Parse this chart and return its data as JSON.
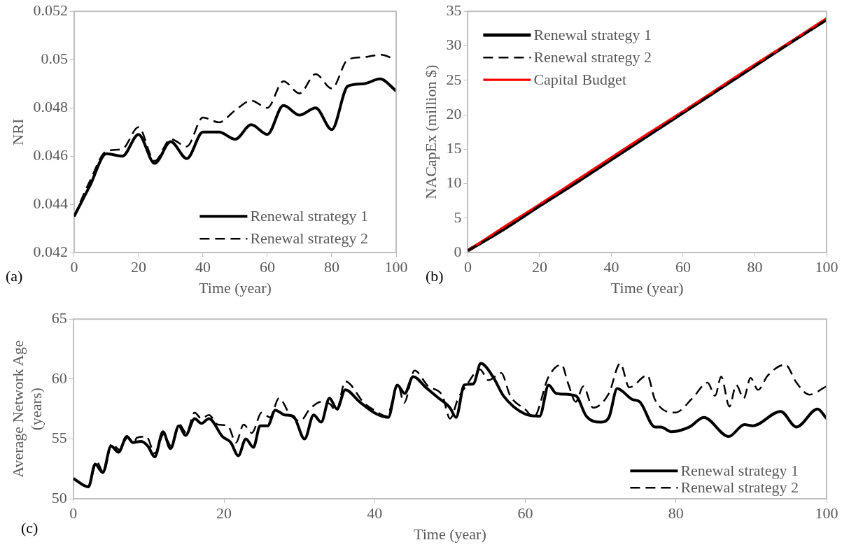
{
  "chart_data": [
    {
      "type": "line",
      "xlabel": "Time (year)",
      "ylabel": "NRI",
      "annotations": [
        "(a)"
      ],
      "xlim": [
        0,
        100
      ],
      "xticks": [
        0,
        20,
        40,
        60,
        80,
        100
      ],
      "ylim": [
        0.042,
        0.052
      ],
      "yticks": [
        0.042,
        0.044,
        0.046,
        0.048,
        0.05,
        0.052
      ],
      "grid": false,
      "legend": "bottom right",
      "marker": "none",
      "x": [
        0,
        5,
        10,
        15,
        20,
        25,
        30,
        35,
        40,
        45,
        50,
        55,
        60,
        65,
        70,
        75,
        80,
        85,
        90,
        95,
        100
      ],
      "series": [
        {
          "name": "Renewal strategy 1",
          "color": "#000000",
          "line_style": "solid",
          "values": [
            0.0435,
            0.0448,
            0.0461,
            0.046,
            0.0469,
            0.0457,
            0.0466,
            0.0459,
            0.047,
            0.047,
            0.0467,
            0.0473,
            0.0469,
            0.0481,
            0.0477,
            0.048,
            0.0471,
            0.0489,
            0.049,
            0.0492,
            0.0487
          ]
        },
        {
          "name": "Renewal strategy 2",
          "color": "#000000",
          "line_style": "dashed",
          "values": [
            0.0435,
            0.045,
            0.0462,
            0.0463,
            0.0472,
            0.0458,
            0.0467,
            0.0464,
            0.0476,
            0.0474,
            0.0479,
            0.0483,
            0.048,
            0.0491,
            0.0486,
            0.0494,
            0.0488,
            0.05,
            0.0501,
            0.0502,
            0.05
          ]
        }
      ]
    },
    {
      "type": "line",
      "xlabel": "Time (year)",
      "ylabel": "NACapEx (million $)",
      "annotations": [
        "(b)"
      ],
      "xlim": [
        0,
        100
      ],
      "xticks": [
        0,
        20,
        40,
        60,
        80,
        100
      ],
      "ylim": [
        0,
        35
      ],
      "yticks": [
        0,
        5,
        10,
        15,
        20,
        25,
        30,
        35
      ],
      "grid": false,
      "legend": "top left",
      "marker": "none",
      "x": [
        0,
        10,
        20,
        30,
        40,
        50,
        60,
        70,
        80,
        90,
        100
      ],
      "series": [
        {
          "name": "Renewal strategy 1",
          "color": "#000000",
          "line_style": "solid",
          "values": [
            0.3,
            3.4,
            6.8,
            10.1,
            13.5,
            16.9,
            20.3,
            23.7,
            27.1,
            30.5,
            33.8
          ]
        },
        {
          "name": "Renewal strategy 2",
          "color": "#000000",
          "line_style": "dashed",
          "values": [
            0.3,
            3.4,
            6.8,
            10.1,
            13.5,
            16.9,
            20.3,
            23.7,
            27.1,
            30.5,
            33.8
          ]
        },
        {
          "name": "Capital Budget",
          "color": "#ff0000",
          "line_style": "solid",
          "values": [
            0.3,
            3.7,
            7.0,
            10.4,
            13.8,
            17.2,
            20.5,
            23.9,
            27.3,
            30.6,
            34.0
          ]
        }
      ]
    },
    {
      "type": "line",
      "xlabel": "Time (year)",
      "ylabel": "Average Network Age (years)",
      "annotations": [
        "(c)"
      ],
      "xlim": [
        0,
        100
      ],
      "xticks": [
        0,
        20,
        40,
        60,
        80,
        100
      ],
      "ylim": [
        50,
        65
      ],
      "yticks": [
        50,
        55,
        60,
        65
      ],
      "grid": false,
      "legend": "bottom right",
      "marker": "none",
      "series": [
        {
          "name": "Renewal strategy 1",
          "color": "#000000",
          "line_style": "solid",
          "x": [
            0,
            2,
            2.9,
            3.9,
            5,
            6,
            7.1,
            7.9,
            9,
            9.9,
            10.8,
            11.9,
            12.9,
            14,
            14.9,
            16.1,
            17,
            18,
            19.8,
            20.9,
            21.9,
            22.9,
            23.9,
            24.8,
            25.8,
            26.8,
            28.1,
            29.2,
            30.7,
            31.9,
            32.9,
            34,
            35,
            36.1,
            38,
            40.2,
            41.8,
            43,
            44,
            45.1,
            46.8,
            48.3,
            50,
            50.8,
            51.9,
            53.1,
            54.1,
            55.7,
            57.1,
            59.9,
            61.9,
            63.1,
            64.1,
            66.7,
            68.1,
            70,
            71.1,
            72.2,
            74.2,
            75.2,
            77.2,
            78,
            79.4,
            81.8,
            83.7,
            87,
            89.1,
            90.2,
            93.9,
            96,
            98.8,
            100
          ],
          "values": [
            51.7,
            51,
            52.9,
            52.2,
            54.4,
            53.9,
            55.2,
            54.7,
            54.8,
            54.4,
            53.5,
            55.6,
            54.2,
            56.1,
            55.3,
            56.7,
            56.3,
            56.7,
            55.2,
            54.7,
            53.6,
            55,
            54.3,
            56.1,
            56.1,
            57.4,
            57,
            56.9,
            55,
            57,
            56.4,
            58.4,
            57.5,
            59.1,
            58.1,
            57.1,
            56.8,
            59.5,
            58.8,
            60.2,
            59.3,
            58.5,
            57.6,
            56.8,
            59.5,
            59.6,
            61.3,
            60.2,
            58.6,
            57.1,
            56.9,
            59.5,
            58.8,
            58.6,
            56.9,
            56.4,
            56.8,
            59.2,
            58.3,
            58.1,
            56,
            56,
            55.6,
            56,
            56.8,
            55.2,
            56.2,
            56.1,
            57.3,
            56,
            57.5,
            56.7
          ]
        },
        {
          "name": "Renewal strategy 2",
          "color": "#000000",
          "line_style": "dashed",
          "x": [
            0,
            2,
            3.1,
            4,
            5.1,
            6.1,
            7.2,
            8.1,
            8.4,
            9.7,
            10.8,
            12,
            13,
            14.1,
            15,
            16.1,
            17,
            18,
            19.2,
            20.5,
            21.6,
            22.6,
            23.7,
            25,
            26.1,
            27.3,
            28.8,
            30.1,
            31.4,
            32.9,
            34.1,
            34.9,
            36.1,
            38.6,
            40.2,
            41.6,
            43.1,
            43.9,
            45.3,
            47.1,
            49,
            50,
            51.1,
            52.1,
            54,
            55.1,
            56.8,
            58,
            60.1,
            61.1,
            63.1,
            64.8,
            65.7,
            66.7,
            67.7,
            69,
            71.1,
            72.6,
            73.8,
            76.2,
            77.2,
            79.9,
            82.2,
            84.2,
            85.2,
            86,
            87.1,
            88,
            89,
            89.9,
            90.9,
            92.2,
            94.5,
            96,
            97.7,
            100
          ],
          "values": [
            51.7,
            51,
            53.1,
            52.2,
            54.6,
            54.1,
            55.1,
            54.7,
            55.1,
            55.2,
            53.8,
            55.4,
            54.4,
            56.2,
            55.5,
            57.2,
            56.7,
            57,
            56.2,
            56.1,
            54.7,
            56.2,
            55.5,
            57.2,
            56.8,
            58.4,
            57,
            56.5,
            57.5,
            58.1,
            57.9,
            57.3,
            59.8,
            58,
            57.3,
            56.9,
            59.5,
            58,
            60.7,
            59.4,
            58.6,
            56.7,
            58.4,
            59.4,
            60.8,
            59.9,
            60.5,
            58.6,
            57.4,
            56.8,
            60.2,
            61.2,
            59.6,
            58.1,
            59.4,
            57.6,
            58.8,
            61.3,
            59.3,
            60.3,
            58.3,
            57.2,
            58.4,
            59.7,
            58.6,
            60.2,
            57.7,
            59.5,
            58.4,
            60.1,
            59.1,
            60.3,
            61.2,
            59.7,
            58.7,
            59.4
          ]
        }
      ]
    }
  ]
}
